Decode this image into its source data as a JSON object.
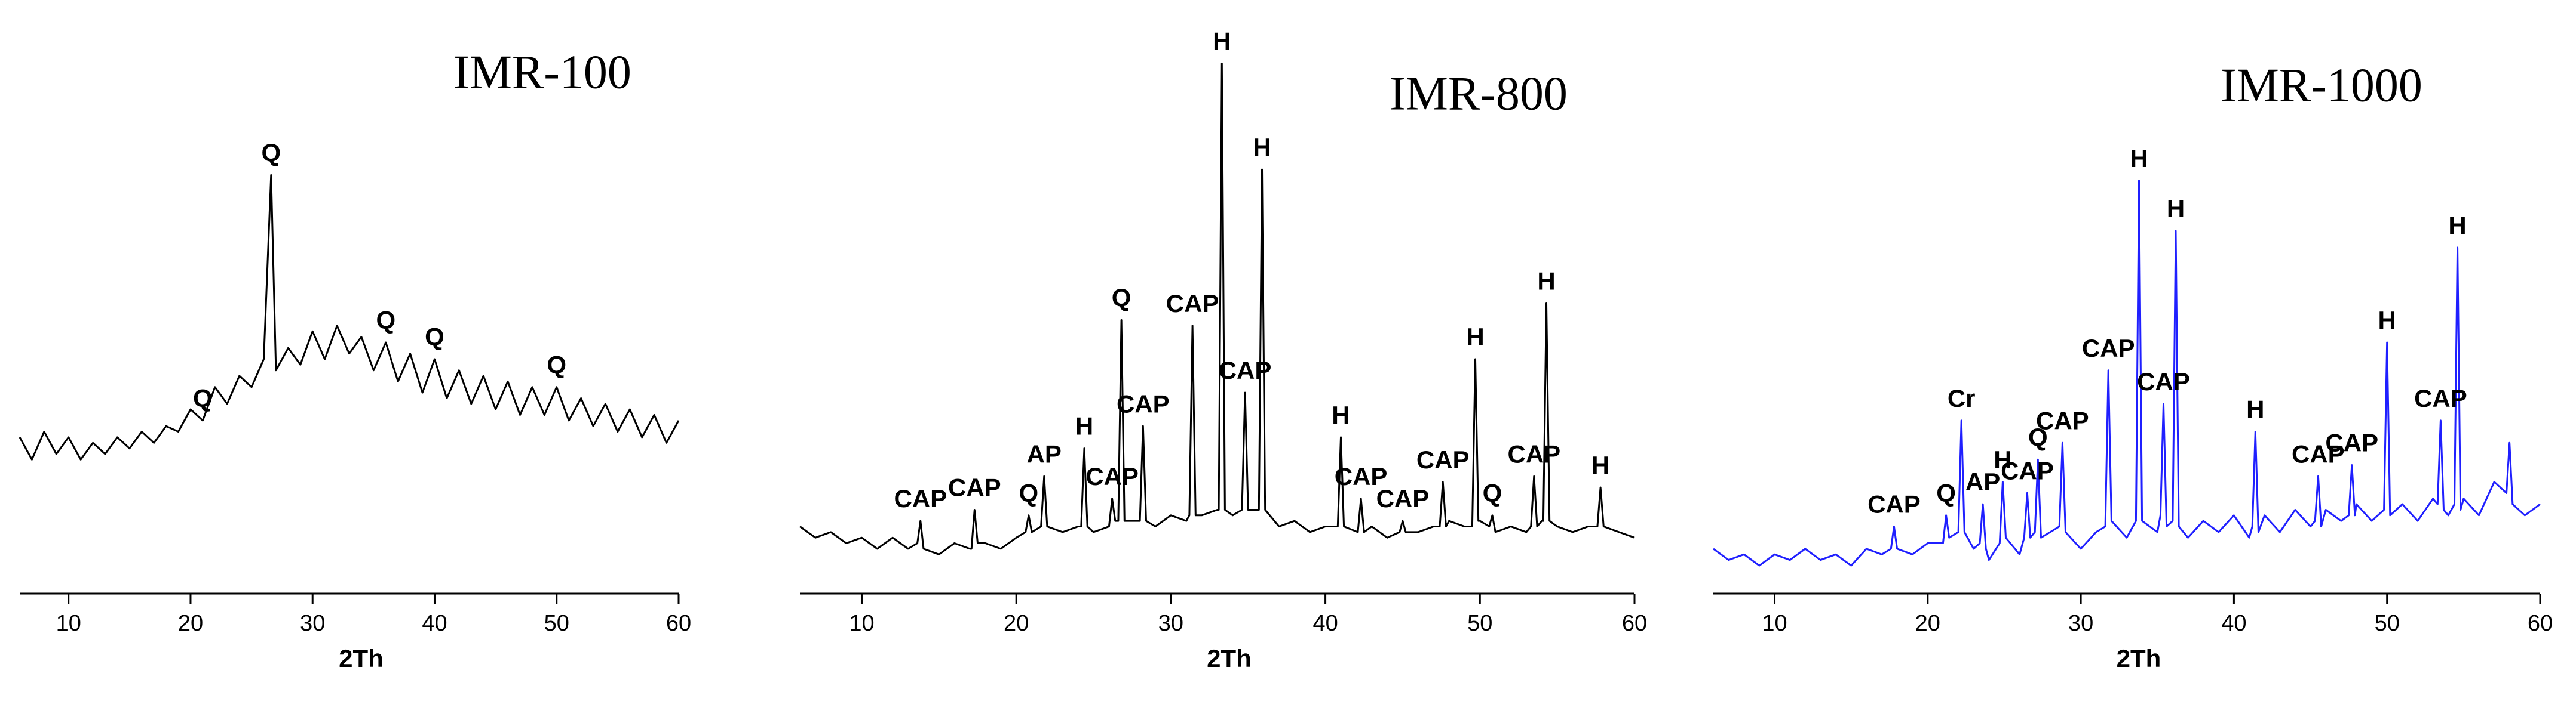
{
  "chart_data": [
    {
      "type": "line",
      "title": "IMR-100",
      "x_label": "2Th",
      "color": "#000000",
      "xlim": [
        6,
        60
      ],
      "ylim": [
        0,
        100
      ],
      "xticks": [
        10,
        20,
        30,
        40,
        50,
        60
      ],
      "x": [
        6,
        7,
        8,
        9,
        10,
        11,
        12,
        13,
        14,
        15,
        16,
        17,
        18,
        19,
        20,
        21,
        22,
        23,
        24,
        25,
        26,
        26.6,
        27,
        28,
        29,
        30,
        31,
        32,
        33,
        34,
        35,
        36,
        37,
        38,
        39,
        40,
        41,
        42,
        43,
        44,
        45,
        46,
        47,
        48,
        49,
        50,
        51,
        52,
        53,
        54,
        55,
        56,
        57,
        58,
        59,
        60
      ],
      "values": [
        26,
        22,
        27,
        23,
        26,
        22,
        25,
        23,
        26,
        24,
        27,
        25,
        28,
        27,
        31,
        29,
        35,
        32,
        37,
        35,
        40,
        73,
        38,
        42,
        39,
        45,
        40,
        46,
        41,
        44,
        38,
        43,
        36,
        41,
        34,
        40,
        33,
        38,
        32,
        37,
        31,
        36,
        30,
        35,
        30,
        35,
        29,
        33,
        28,
        32,
        27,
        31,
        26,
        30,
        25,
        29
      ],
      "annotations": [
        {
          "text": "Q",
          "x": 21
        },
        {
          "text": "Q",
          "x": 26.6
        },
        {
          "text": "Q",
          "x": 36
        },
        {
          "text": "Q",
          "x": 40
        },
        {
          "text": "Q",
          "x": 50
        }
      ]
    },
    {
      "type": "line",
      "title": "IMR-800",
      "x_label": "2Th",
      "color": "#000000",
      "xlim": [
        6,
        60
      ],
      "ylim": [
        0,
        100
      ],
      "xticks": [
        10,
        20,
        30,
        40,
        50,
        60
      ],
      "x": [
        6,
        7,
        8,
        9,
        10,
        11,
        12,
        13,
        13.6,
        13.8,
        14.0,
        15,
        16,
        17,
        17.1,
        17.3,
        17.5,
        18,
        19,
        20,
        20.6,
        20.8,
        21.0,
        21.6,
        21.8,
        22.0,
        23,
        24,
        24.2,
        24.4,
        24.6,
        25,
        26.0,
        26.2,
        26.4,
        26.6,
        26.8,
        27.0,
        28.0,
        28.2,
        28.4,
        29,
        30,
        31,
        31.2,
        31.4,
        31.6,
        32,
        33,
        33.1,
        33.3,
        33.5,
        34,
        34.6,
        34.8,
        35.0,
        35.7,
        35.9,
        36.1,
        37,
        38,
        39,
        40,
        40.8,
        41.0,
        41.2,
        42.1,
        42.3,
        42.5,
        43,
        44,
        44.8,
        45.0,
        45.2,
        46,
        47,
        47.4,
        47.6,
        47.8,
        48,
        49,
        49.5,
        49.7,
        49.9,
        50,
        50.6,
        50.8,
        51.0,
        52,
        53,
        53.3,
        53.5,
        53.7,
        54,
        54.1,
        54.3,
        54.5,
        55,
        56,
        57,
        57.6,
        57.8,
        58.0,
        59,
        60
      ],
      "values": [
        10,
        8,
        9,
        7,
        8,
        6,
        8,
        6,
        7,
        11,
        6,
        5,
        7,
        6,
        6,
        13,
        7,
        7,
        6,
        8,
        9,
        12,
        9,
        10,
        19,
        10,
        9,
        10,
        10,
        24,
        10,
        9,
        10,
        15,
        11,
        11,
        47,
        11,
        11,
        28,
        11,
        10,
        12,
        11,
        12,
        46,
        12,
        12,
        13,
        13,
        93,
        13,
        12,
        13,
        34,
        13,
        13,
        74,
        13,
        10,
        11,
        9,
        10,
        10,
        26,
        10,
        9,
        15,
        9,
        10,
        8,
        9,
        11,
        9,
        9,
        10,
        10,
        18,
        10,
        11,
        10,
        10,
        40,
        11,
        11,
        10,
        12,
        9,
        10,
        9,
        10,
        19,
        10,
        11,
        11,
        50,
        11,
        10,
        9,
        10,
        10,
        17,
        10,
        9,
        8
      ],
      "annotations": [
        {
          "text": "CAP",
          "x": 13.8
        },
        {
          "text": "CAP",
          "x": 17.3
        },
        {
          "text": "Q",
          "x": 20.8
        },
        {
          "text": "AP",
          "x": 21.8
        },
        {
          "text": "H",
          "x": 24.4
        },
        {
          "text": "CAP",
          "x": 26.2
        },
        {
          "text": "Q",
          "x": 26.8
        },
        {
          "text": "CAP",
          "x": 28.2
        },
        {
          "text": "CAP",
          "x": 31.4
        },
        {
          "text": "H",
          "x": 33.3
        },
        {
          "text": "CAP",
          "x": 34.8
        },
        {
          "text": "H",
          "x": 35.9
        },
        {
          "text": "H",
          "x": 41.0
        },
        {
          "text": "CAP",
          "x": 42.3
        },
        {
          "text": "CAP",
          "x": 45.0
        },
        {
          "text": "CAP",
          "x": 47.6
        },
        {
          "text": "H",
          "x": 49.7
        },
        {
          "text": "Q",
          "x": 50.8
        },
        {
          "text": "CAP",
          "x": 53.5
        },
        {
          "text": "H",
          "x": 54.3
        },
        {
          "text": "H",
          "x": 57.8
        }
      ]
    },
    {
      "type": "line",
      "title": "IMR-1000",
      "x_label": "2Th",
      "color": "#1f1fff",
      "xlim": [
        6,
        60
      ],
      "ylim": [
        0,
        100
      ],
      "xticks": [
        10,
        20,
        30,
        40,
        50,
        60
      ],
      "x": [
        6,
        7,
        8,
        9,
        10,
        11,
        12,
        13,
        14,
        15,
        16,
        17,
        17.6,
        17.8,
        18.0,
        19,
        20,
        21.0,
        21.2,
        21.4,
        22.0,
        22.2,
        22.4,
        23,
        23.4,
        23.6,
        23.8,
        24,
        24.7,
        24.9,
        25.1,
        26,
        26.3,
        26.5,
        26.7,
        27.0,
        27.2,
        27.4,
        28,
        28.6,
        28.8,
        29.0,
        30,
        31,
        31.6,
        31.8,
        32.0,
        33,
        33.6,
        33.8,
        34.0,
        35,
        35.2,
        35.4,
        35.6,
        36.0,
        36.2,
        36.4,
        37,
        38,
        39,
        40,
        41,
        41.2,
        41.4,
        41.6,
        42,
        43,
        44,
        45,
        45.3,
        45.5,
        45.7,
        46,
        47,
        47.5,
        47.7,
        47.9,
        48,
        49,
        49.8,
        50.0,
        50.2,
        51,
        52,
        53,
        53.3,
        53.5,
        53.7,
        54,
        54.4,
        54.6,
        54.8,
        55,
        56,
        57,
        57.8,
        58.0,
        58.2,
        59,
        60
      ],
      "values": [
        6,
        4,
        5,
        3,
        5,
        4,
        6,
        4,
        5,
        3,
        6,
        5,
        6,
        10,
        6,
        5,
        7,
        7,
        12,
        8,
        9,
        29,
        9,
        6,
        7,
        14,
        6,
        4,
        7,
        18,
        8,
        5,
        8,
        16,
        8,
        9,
        22,
        8,
        9,
        10,
        25,
        9,
        6,
        9,
        10,
        38,
        11,
        8,
        11,
        72,
        11,
        9,
        12,
        32,
        10,
        11,
        63,
        10,
        8,
        11,
        9,
        12,
        8,
        10,
        27,
        9,
        12,
        9,
        13,
        10,
        11,
        19,
        10,
        13,
        11,
        12,
        21,
        12,
        14,
        11,
        13,
        43,
        12,
        14,
        11,
        15,
        14,
        29,
        13,
        12,
        14,
        60,
        13,
        15,
        12,
        18,
        16,
        25,
        14,
        12,
        14
      ],
      "annotations": [
        {
          "text": "CAP",
          "x": 17.8
        },
        {
          "text": "Q",
          "x": 21.2
        },
        {
          "text": "Cr",
          "x": 22.2
        },
        {
          "text": "AP",
          "x": 23.6
        },
        {
          "text": "H",
          "x": 24.9
        },
        {
          "text": "CAP",
          "x": 26.5
        },
        {
          "text": "Q",
          "x": 27.2
        },
        {
          "text": "CAP",
          "x": 28.8
        },
        {
          "text": "CAP",
          "x": 31.8
        },
        {
          "text": "H",
          "x": 33.8
        },
        {
          "text": "CAP",
          "x": 35.4
        },
        {
          "text": "H",
          "x": 36.2
        },
        {
          "text": "H",
          "x": 41.4
        },
        {
          "text": "CAP",
          "x": 45.5
        },
        {
          "text": "CAP",
          "x": 47.7
        },
        {
          "text": "H",
          "x": 50.0
        },
        {
          "text": "CAP",
          "x": 53.5
        },
        {
          "text": "H",
          "x": 54.6
        }
      ]
    }
  ]
}
